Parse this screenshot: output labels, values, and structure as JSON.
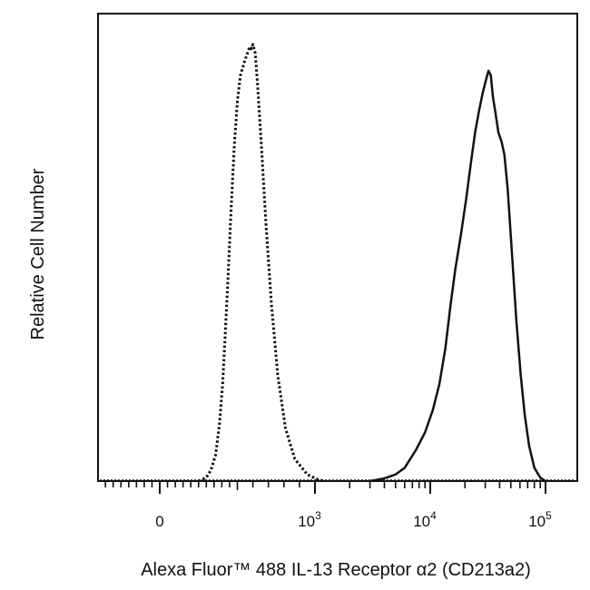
{
  "chart_data": {
    "type": "line",
    "title": "",
    "xlabel": "Alexa Fluor™ 488 IL-13 Receptor α2 (CD213a2)",
    "ylabel": "Relative Cell Number",
    "x_scale": "biexponential",
    "x_ticks": [
      {
        "value": 0,
        "label": "0"
      },
      {
        "value": 1000,
        "label": "10",
        "exp": "3"
      },
      {
        "value": 10000,
        "label": "10",
        "exp": "4"
      },
      {
        "value": 100000,
        "label": "10",
        "exp": "5"
      }
    ],
    "xlim": [
      -300,
      200000
    ],
    "ylim": [
      0,
      100
    ],
    "grid": false,
    "legend": "none",
    "series": [
      {
        "style": "dotted",
        "color": "#111111",
        "points": [
          [
            250,
            0
          ],
          [
            300,
            0.8
          ],
          [
            330,
            2.5
          ],
          [
            360,
            6
          ],
          [
            385,
            13
          ],
          [
            405,
            22
          ],
          [
            420,
            32
          ],
          [
            440,
            46
          ],
          [
            460,
            62
          ],
          [
            480,
            76
          ],
          [
            500,
            86
          ],
          [
            520,
            92
          ],
          [
            545,
            95
          ],
          [
            565,
            97
          ],
          [
            580,
            98.5
          ],
          [
            590,
            98
          ],
          [
            600,
            99
          ],
          [
            615,
            97
          ],
          [
            630,
            90
          ],
          [
            655,
            76
          ],
          [
            685,
            58
          ],
          [
            720,
            40
          ],
          [
            760,
            24
          ],
          [
            810,
            12
          ],
          [
            870,
            5
          ],
          [
            950,
            1.5
          ],
          [
            1050,
            0.4
          ],
          [
            1200,
            0
          ]
        ]
      },
      {
        "style": "solid",
        "color": "#111111",
        "points": [
          [
            3000,
            0
          ],
          [
            4000,
            0.6
          ],
          [
            5000,
            1.5
          ],
          [
            6000,
            3
          ],
          [
            7500,
            7
          ],
          [
            9000,
            11
          ],
          [
            10500,
            16
          ],
          [
            12000,
            22
          ],
          [
            13500,
            30
          ],
          [
            15000,
            40
          ],
          [
            16500,
            48
          ],
          [
            18500,
            56
          ],
          [
            20500,
            64
          ],
          [
            22500,
            72
          ],
          [
            24500,
            79
          ],
          [
            26500,
            84
          ],
          [
            28500,
            88
          ],
          [
            30500,
            91
          ],
          [
            32000,
            93
          ],
          [
            33500,
            92
          ],
          [
            35000,
            87
          ],
          [
            37000,
            83
          ],
          [
            39000,
            79
          ],
          [
            41500,
            77
          ],
          [
            44000,
            74
          ],
          [
            47000,
            66
          ],
          [
            51000,
            52
          ],
          [
            56000,
            36
          ],
          [
            61000,
            24
          ],
          [
            66000,
            15
          ],
          [
            72000,
            8
          ],
          [
            80000,
            3
          ],
          [
            90000,
            0.8
          ],
          [
            100000,
            0
          ]
        ]
      }
    ]
  }
}
